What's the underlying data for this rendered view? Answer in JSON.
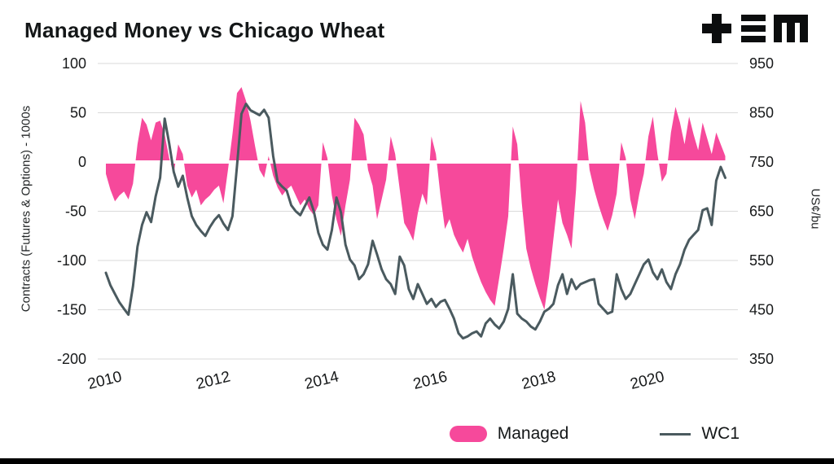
{
  "header": {
    "title": "Managed Money vs Chicago Wheat",
    "logo_name": "tem-logo"
  },
  "chart_data": {
    "type": "area+line",
    "title": "Managed Money vs Chicago Wheat",
    "grid": "horizontal",
    "legend_position": "bottom-right",
    "x_range": [
      2009.85,
      2021.65
    ],
    "x_ticks": [
      2010,
      2012,
      2014,
      2016,
      2018,
      2020
    ],
    "x_start": 2010.0,
    "x_step_years": 0.0833333,
    "left_axis": {
      "label": "Contracts (Futures & Options) - 1000s",
      "range": [
        100,
        -200
      ],
      "ticks": [
        100,
        50,
        0,
        -50,
        -100,
        -150,
        -200
      ]
    },
    "right_axis": {
      "label": "US¢/bu",
      "range": [
        950,
        350
      ],
      "ticks": [
        950,
        850,
        750,
        650,
        550,
        450,
        350
      ]
    },
    "series": [
      {
        "name": "Managed",
        "type": "area",
        "axis": "left",
        "color": "#f6499b",
        "values": [
          -12,
          -28,
          -40,
          -34,
          -30,
          -38,
          -22,
          18,
          45,
          38,
          22,
          40,
          42,
          28,
          4,
          -12,
          18,
          8,
          -24,
          -36,
          -28,
          -44,
          -38,
          -34,
          -28,
          -24,
          -42,
          -8,
          28,
          70,
          76,
          62,
          42,
          16,
          -8,
          -16,
          6,
          -14,
          -26,
          -34,
          -28,
          -24,
          -34,
          -44,
          -38,
          -48,
          -54,
          -44,
          20,
          4,
          -34,
          -58,
          -75,
          -44,
          -18,
          45,
          38,
          28,
          -8,
          -24,
          -58,
          -38,
          -18,
          26,
          8,
          -28,
          -62,
          -70,
          -80,
          -52,
          -32,
          -44,
          26,
          8,
          -34,
          -68,
          -58,
          -74,
          -84,
          -92,
          -78,
          -96,
          -110,
          -122,
          -132,
          -140,
          -146,
          -118,
          -88,
          -55,
          36,
          18,
          -42,
          -88,
          -108,
          -124,
          -138,
          -150,
          -118,
          -78,
          -38,
          -62,
          -74,
          -88,
          -28,
          62,
          40,
          -8,
          -28,
          -44,
          -58,
          -70,
          -54,
          -32,
          20,
          4,
          -38,
          -58,
          -32,
          -12,
          26,
          46,
          8,
          -20,
          -12,
          30,
          56,
          40,
          18,
          46,
          28,
          12,
          40,
          24,
          8,
          30,
          18,
          6
        ]
      },
      {
        "name": "WC1",
        "type": "line",
        "axis": "right",
        "color": "#4a5a5f",
        "values": [
          525,
          500,
          482,
          465,
          452,
          440,
          498,
          578,
          622,
          648,
          628,
          680,
          718,
          838,
          788,
          730,
          700,
          722,
          678,
          640,
          622,
          610,
          600,
          618,
          632,
          642,
          625,
          612,
          640,
          742,
          848,
          868,
          855,
          850,
          845,
          856,
          840,
          762,
          710,
          700,
          692,
          662,
          650,
          642,
          660,
          678,
          650,
          606,
          582,
          572,
          612,
          678,
          648,
          582,
          552,
          540,
          512,
          522,
          542,
          590,
          562,
          532,
          512,
          502,
          482,
          558,
          540,
          492,
          472,
          502,
          482,
          462,
          472,
          456,
          466,
          470,
          452,
          432,
          402,
          392,
          396,
          402,
          406,
          396,
          422,
          432,
          420,
          412,
          426,
          452,
          522,
          442,
          432,
          426,
          416,
          410,
          426,
          446,
          452,
          462,
          500,
          522,
          482,
          512,
          492,
          502,
          506,
          510,
          512,
          462,
          452,
          442,
          446,
          522,
          492,
          472,
          482,
          502,
          522,
          542,
          552,
          526,
          512,
          532,
          506,
          492,
          522,
          542,
          572,
          592,
          602,
          612,
          652,
          656,
          622,
          712,
          740,
          718
        ]
      }
    ]
  },
  "style": {
    "gridline_color": "#dadada",
    "zero_line_color": "#ffffff",
    "tick_text_color": "#17191a"
  }
}
